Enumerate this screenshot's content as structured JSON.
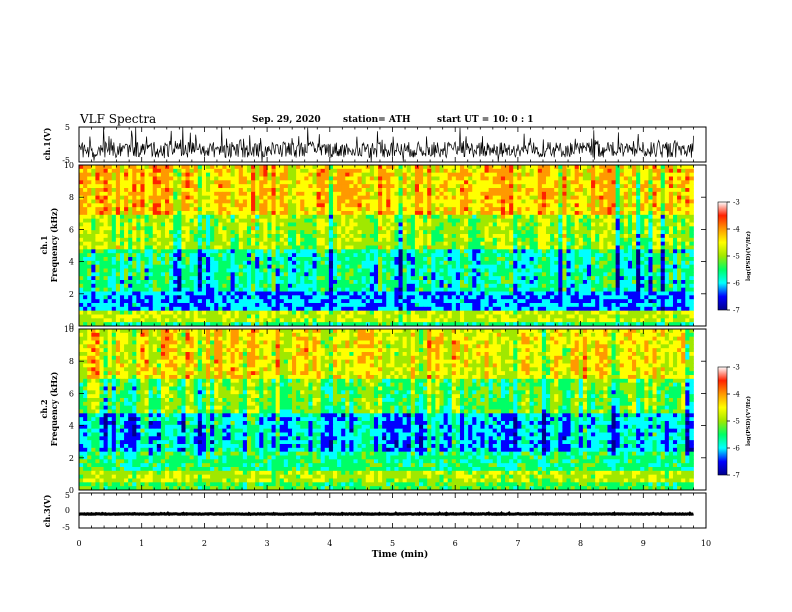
{
  "header": {
    "title": "VLF Spectra",
    "date": "Sep. 29, 2020",
    "station": "station= ATH",
    "start": "start  UT =  10: 0  : 1"
  },
  "colors": {
    "spectrogram_scale": [
      "#00008b",
      "#0000ff",
      "#00ffff",
      "#00ff66",
      "#a0e800",
      "#ffff00",
      "#ff9900",
      "#ff2200",
      "#ffffff"
    ],
    "waveform": "#000000"
  },
  "chart_data": [
    {
      "type": "line",
      "name": "ch1-waveform",
      "ylabel": "ch.1(V)",
      "ylim": [
        -5,
        5
      ],
      "yticks": [
        "5",
        "-5"
      ],
      "xlim": [
        0,
        10
      ],
      "description_values": {
        "baseline": -1.5,
        "typical_min": -3.5,
        "typical_max": 2.0
      }
    },
    {
      "type": "heatmap",
      "name": "ch1-spectrogram",
      "ylabel": "ch.1\nFrequency (kHz)",
      "ylabel_top": "ch.1",
      "ylabel_bottom": "Frequency (kHz)",
      "ylim": [
        0,
        10
      ],
      "yticks": [
        "0",
        "2",
        "4",
        "6",
        "8",
        "10"
      ],
      "xlim": [
        0,
        9.8
      ],
      "zlim": [
        -7,
        -3
      ],
      "colorbar_ticks": [
        "-3",
        "-4",
        "-5",
        "-6",
        "-7"
      ],
      "colorbar_label": "log(PSD)(V²/Hz)",
      "band_levels": [
        {
          "freq_from": 0.0,
          "freq_to": 0.3,
          "level": -5.0
        },
        {
          "freq_from": 0.3,
          "freq_to": 0.9,
          "level": -4.2
        },
        {
          "freq_from": 0.9,
          "freq_to": 2.1,
          "level": -5.8
        },
        {
          "freq_from": 2.1,
          "freq_to": 4.8,
          "level": -5.2
        },
        {
          "freq_from": 4.8,
          "freq_to": 7.0,
          "level": -4.4
        },
        {
          "freq_from": 7.0,
          "freq_to": 10.0,
          "level": -3.6
        }
      ]
    },
    {
      "type": "heatmap",
      "name": "ch2-spectrogram",
      "ylabel_top": "ch.2",
      "ylabel_bottom": "Frequency (kHz)",
      "ylim": [
        0,
        10
      ],
      "yticks": [
        "0",
        "2",
        "4",
        "6",
        "8",
        "10"
      ],
      "xlim": [
        0,
        9.8
      ],
      "zlim": [
        -7,
        -3
      ],
      "colorbar_ticks": [
        "-3",
        "-4",
        "-5",
        "-6",
        "-7"
      ],
      "colorbar_label": "log(PSD)(V²/Hz)",
      "band_levels": [
        {
          "freq_from": 0.0,
          "freq_to": 0.5,
          "level": -4.8
        },
        {
          "freq_from": 0.5,
          "freq_to": 1.3,
          "level": -4.3
        },
        {
          "freq_from": 1.3,
          "freq_to": 2.3,
          "level": -5.0
        },
        {
          "freq_from": 2.3,
          "freq_to": 4.8,
          "level": -5.5
        },
        {
          "freq_from": 4.8,
          "freq_to": 7.0,
          "level": -4.6
        },
        {
          "freq_from": 7.0,
          "freq_to": 10.0,
          "level": -3.8
        }
      ]
    },
    {
      "type": "line",
      "name": "ch3-waveform",
      "ylabel": "ch.3(V)",
      "ylim": [
        -5,
        5
      ],
      "yticks": [
        "5",
        "0",
        "-5"
      ],
      "xlim": [
        0,
        9.8
      ],
      "description_values": {
        "baseline": -1.0
      }
    }
  ],
  "xaxis": {
    "label": "Time (min)",
    "ticks": [
      "0",
      "1",
      "2",
      "3",
      "4",
      "5",
      "6",
      "7",
      "8",
      "9",
      "10"
    ]
  }
}
